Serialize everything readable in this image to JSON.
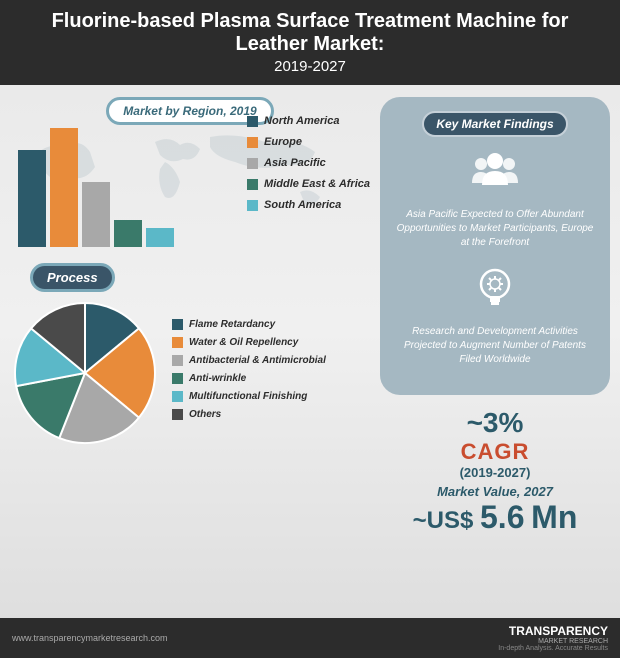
{
  "title": {
    "main": "Fluorine-based Plasma Surface Treatment Machine for Leather Market:",
    "years": "2019-2027"
  },
  "region_chart": {
    "badge": "Market by Region, 2019",
    "type": "bar",
    "categories": [
      "North America",
      "Europe",
      "Asia Pacific",
      "Middle East & Africa",
      "South America"
    ],
    "values": [
      78,
      95,
      52,
      22,
      15
    ],
    "colors": [
      "#2c5a6a",
      "#e88b3a",
      "#a8a8a8",
      "#3a7a6a",
      "#5bb8c8"
    ],
    "max_height": 125
  },
  "process_chart": {
    "badge": "Process",
    "type": "pie",
    "segments": [
      {
        "label": "Flame Retardancy",
        "value": 14,
        "color": "#2c5a6a"
      },
      {
        "label": "Water & Oil Repellency",
        "value": 22,
        "color": "#e88b3a"
      },
      {
        "label": "Antibacterial & Antimicrobial",
        "value": 20,
        "color": "#a8a8a8"
      },
      {
        "label": "Anti-wrinkle",
        "value": 16,
        "color": "#3a7a6a"
      },
      {
        "label": "Multifunctional Finishing",
        "value": 14,
        "color": "#5bb8c8"
      },
      {
        "label": "Others",
        "value": 14,
        "color": "#4a4a4a"
      }
    ]
  },
  "findings": {
    "title": "Key Market Findings",
    "items": [
      {
        "icon": "people",
        "text": "Asia Pacific Expected to Offer Abundant Opportunities to Market Participants, Europe at the Forefront"
      },
      {
        "icon": "bulb",
        "text": "Research and Development Activities Projected to Augment Number of Patents Filed Worldwide"
      }
    ]
  },
  "stats": {
    "cagr_pct": "~3%",
    "cagr_label": "CAGR",
    "cagr_years": "(2019-2027)",
    "market_value_label": "Market Value, 2027",
    "market_value_prefix": "~US$",
    "market_value_num": "5.6",
    "market_value_unit": "Mn"
  },
  "footer": {
    "url": "www.transparencymarketresearch.com",
    "logo_main": "TRANSPARENCY",
    "logo_sub": "MARKET RESEARCH",
    "tag": "In-depth Analysis. Accurate Results"
  },
  "colors": {
    "bg_gradient_top": "#e8e8e8",
    "bg_gradient_bottom": "#dcdcdc",
    "title_bg": "#2c2c2c",
    "badge_border": "#7ba8b8",
    "findings_bg": "#a5b8c2",
    "cagr_color": "#c94d2f",
    "stat_color": "#2c5a6a"
  }
}
